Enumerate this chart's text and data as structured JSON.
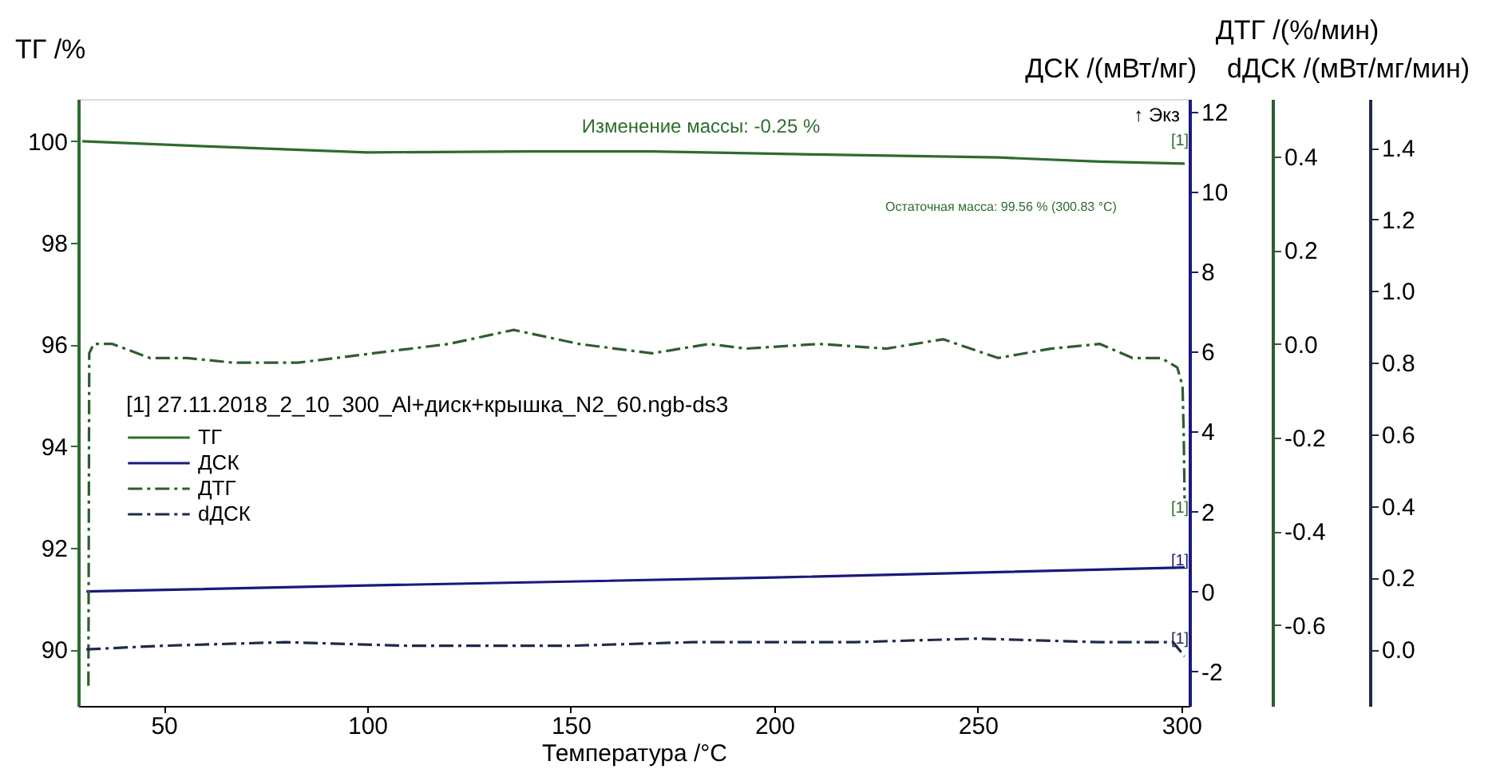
{
  "chart_data": [
    {
      "type": "line",
      "xlabel": "Температура /°C",
      "ylabel": "ТГ /%",
      "y2label": "ДСК /(мВт/мг)",
      "y3label": "ДТГ /(%/мин)",
      "legend_title": "[1] 27.11.2018_2_10_300_Al+диск+крышка_N2_60.ngb-ds3",
      "legend": "left",
      "grid": false,
      "xlim": [
        29,
        302
      ],
      "xticks": [
        50,
        100,
        150,
        200,
        250,
        300
      ],
      "ylim": [
        88.89,
        100.83
      ],
      "yticks": [
        90,
        92,
        94,
        96,
        98,
        100
      ],
      "y2lim": [
        -2.86,
        12.31
      ],
      "y2ticks": [
        -2,
        0,
        2,
        4,
        6,
        8,
        10,
        12
      ],
      "y3lim": [
        -0.773,
        0.523
      ],
      "y3ticks": [
        -0.6,
        -0.4,
        -0.2,
        {
          "value": 0,
          "label": "0.0"
        },
        0.2,
        0.4
      ],
      "series": [
        {
          "name": "ТГ",
          "color": "#2e6b2e",
          "axis": "y",
          "line_style": "solid",
          "x": [
            30,
            60,
            100,
            140,
            170,
            210,
            255,
            280,
            300.83
          ],
          "values": [
            100.0,
            99.9,
            99.78,
            99.8,
            99.8,
            99.74,
            99.68,
            99.6,
            99.56
          ]
        },
        {
          "name": "ДСК",
          "color": "#1a1a7a",
          "axis": "y2",
          "line_style": "solid",
          "x": [
            31,
            100,
            200,
            300.83
          ],
          "values": [
            0.0,
            0.15,
            0.35,
            0.6
          ]
        },
        {
          "name": "ДТГ",
          "color": "#2e5e2e",
          "axis": "y3",
          "line_style": "dashed",
          "x": [
            31.5,
            31.7,
            32.8,
            37.4,
            46.6,
            55.8,
            67,
            83,
            101.5,
            120,
            136,
            152,
            170,
            184,
            193,
            211,
            227.5,
            241.5,
            255,
            268,
            280,
            288,
            295,
            299,
            300.3,
            300.6,
            300.8
          ],
          "values": [
            -0.73,
            -0.02,
            0.0,
            0.0,
            -0.03,
            -0.03,
            -0.04,
            -0.04,
            -0.02,
            0.0,
            0.03,
            0.0,
            -0.02,
            0.0,
            -0.01,
            0.0,
            -0.01,
            0.01,
            -0.03,
            -0.01,
            0.0,
            -0.03,
            -0.03,
            -0.05,
            -0.09,
            -0.2,
            -0.33
          ]
        }
      ],
      "annotations": [
        "Изменение массы: -0.25 %",
        "Остаточная масса: 99.56 % (300.83 °C)",
        "[1]",
        "[1]",
        "[1]",
        "[1]",
        "↑ Экз"
      ]
    },
    {
      "type": "line",
      "ylabel": "dДСК /(мВт/мг/мин)",
      "tick_labels": "y",
      "xlim": [
        29,
        302
      ],
      "ylim": [
        -0.158,
        1.536
      ],
      "yticks": [
        {
          "value": 0,
          "label": "0.0"
        },
        0.2,
        0.4,
        0.6,
        0.8,
        {
          "value": 1,
          "label": "1.0"
        },
        1.2,
        1.4
      ],
      "series": [
        {
          "name": "dДСК",
          "color": "#1f2a4a",
          "line_style": "dashed",
          "x": [
            31,
            50,
            80,
            110,
            150,
            180,
            220,
            250,
            280,
            298,
            300.8
          ],
          "values": [
            0.0,
            0.01,
            0.02,
            0.01,
            0.01,
            0.02,
            0.02,
            0.03,
            0.02,
            0.02,
            -0.02
          ]
        }
      ]
    }
  ]
}
